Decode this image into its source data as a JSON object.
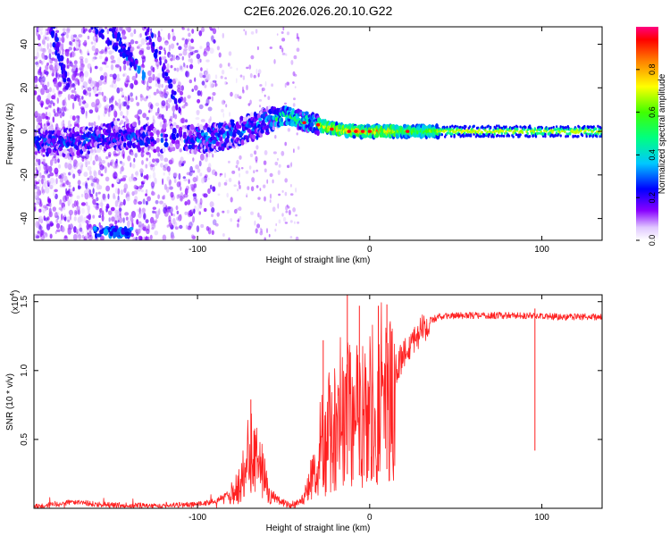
{
  "title": "C2E6.2026.026.20.10.G22",
  "chart_data": [
    {
      "type": "heatmap",
      "name": "spectrogram",
      "xlabel": "Height of straight line (km)",
      "ylabel": "Frequency (Hz)",
      "xlim": [
        -195,
        135
      ],
      "ylim": [
        -50,
        48
      ],
      "xticks": [
        -100,
        0,
        100
      ],
      "yticks": [
        -40,
        -20,
        0,
        20,
        40
      ],
      "ridge": [
        {
          "x": -195,
          "f": -4
        },
        {
          "x": -175,
          "f": -5
        },
        {
          "x": -165,
          "f": -4
        },
        {
          "x": -150,
          "f": -2
        },
        {
          "x": -125,
          "f": -3
        },
        {
          "x": -105,
          "f": -4
        },
        {
          "x": -95,
          "f": -3
        },
        {
          "x": -85,
          "f": -2
        },
        {
          "x": -75,
          "f": 0
        },
        {
          "x": -65,
          "f": 3
        },
        {
          "x": -55,
          "f": 6
        },
        {
          "x": -48,
          "f": 7
        },
        {
          "x": -40,
          "f": 5
        },
        {
          "x": -30,
          "f": 3
        },
        {
          "x": -20,
          "f": 1
        },
        {
          "x": -10,
          "f": 0
        },
        {
          "x": 0,
          "f": 0
        },
        {
          "x": 10,
          "f": 0
        },
        {
          "x": 20,
          "f": 0
        },
        {
          "x": 40,
          "f": 0
        },
        {
          "x": 80,
          "f": 0
        },
        {
          "x": 135,
          "f": 0
        }
      ],
      "colorbar": {
        "label": "Normalized spectral amplitude",
        "range": [
          0,
          1
        ],
        "ticks": [
          "0.0",
          "0.2",
          "0.4",
          "0.6",
          "0.8"
        ],
        "tick_values": [
          0,
          0.2,
          0.4,
          0.6,
          0.8
        ]
      }
    },
    {
      "type": "line",
      "name": "snr",
      "xlabel": "Height of straight line (km)",
      "ylabel": "SNR (10 * v/v)",
      "scale_label": "(x10",
      "scale_exp": "4",
      "scale_close": ")",
      "xlim": [
        -195,
        135
      ],
      "ylim": [
        0,
        1.55
      ],
      "xticks": [
        -100,
        0,
        100
      ],
      "yticks": [
        0.5,
        1.0,
        1.5
      ],
      "ytick_labels": [
        "0.5",
        "1.0",
        "1.5"
      ],
      "color": "#ff2020",
      "envelope": [
        {
          "x": -195,
          "y": 0.01
        },
        {
          "x": -180,
          "y": 0.03
        },
        {
          "x": -170,
          "y": 0.05
        },
        {
          "x": -160,
          "y": 0.03
        },
        {
          "x": -140,
          "y": 0.02
        },
        {
          "x": -120,
          "y": 0.02
        },
        {
          "x": -100,
          "y": 0.03
        },
        {
          "x": -90,
          "y": 0.05
        },
        {
          "x": -80,
          "y": 0.12
        },
        {
          "x": -74,
          "y": 0.28
        },
        {
          "x": -70,
          "y": 0.4
        },
        {
          "x": -66,
          "y": 0.46
        },
        {
          "x": -62,
          "y": 0.35
        },
        {
          "x": -58,
          "y": 0.12
        },
        {
          "x": -52,
          "y": 0.05
        },
        {
          "x": -46,
          "y": 0.02
        },
        {
          "x": -40,
          "y": 0.04
        },
        {
          "x": -35,
          "y": 0.22
        },
        {
          "x": -30,
          "y": 0.45
        },
        {
          "x": -24,
          "y": 0.58
        },
        {
          "x": -18,
          "y": 0.72
        },
        {
          "x": -12,
          "y": 0.85
        },
        {
          "x": -6,
          "y": 0.8
        },
        {
          "x": 0,
          "y": 0.82
        },
        {
          "x": 5,
          "y": 0.9
        },
        {
          "x": 10,
          "y": 0.95
        },
        {
          "x": 15,
          "y": 1.0
        },
        {
          "x": 20,
          "y": 1.12
        },
        {
          "x": 25,
          "y": 1.22
        },
        {
          "x": 30,
          "y": 1.3
        },
        {
          "x": 35,
          "y": 1.36
        },
        {
          "x": 40,
          "y": 1.39
        },
        {
          "x": 50,
          "y": 1.4
        },
        {
          "x": 70,
          "y": 1.4
        },
        {
          "x": 90,
          "y": 1.4
        },
        {
          "x": 110,
          "y": 1.39
        },
        {
          "x": 135,
          "y": 1.39
        }
      ],
      "spikes": [
        {
          "x": -69,
          "y": 0.79
        },
        {
          "x": -13,
          "y": 1.55
        },
        {
          "x": -6,
          "y": 1.47
        },
        {
          "x": 5,
          "y": 1.47
        },
        {
          "x": 10,
          "y": 1.48
        },
        {
          "x": -27,
          "y": 1.22
        },
        {
          "x": 96,
          "y": 1.45
        }
      ]
    }
  ]
}
